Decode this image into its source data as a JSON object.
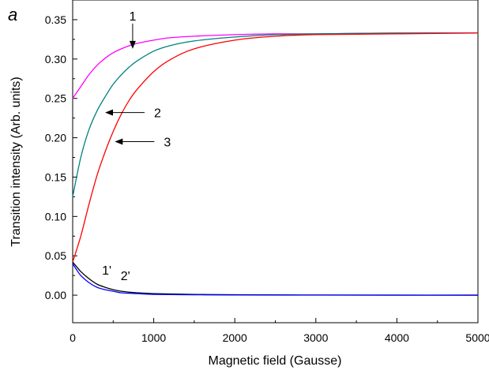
{
  "chart_data": {
    "type": "line",
    "panel_label": "a",
    "xlabel": "Magnetic field (Gausse)",
    "ylabel": "Transition intensity (Arb. units)",
    "xlim": [
      0,
      5000
    ],
    "ylim": [
      -0.035,
      0.375
    ],
    "xticks": [
      0,
      1000,
      2000,
      3000,
      4000,
      5000
    ],
    "xtick_labels": [
      "0",
      "1000",
      "2000",
      "3000",
      "4000",
      "5000"
    ],
    "yticks": [
      0.0,
      0.05,
      0.1,
      0.15,
      0.2,
      0.25,
      0.3,
      0.35
    ],
    "ytick_labels": [
      "0.00",
      "0.05",
      "0.10",
      "0.15",
      "0.20",
      "0.25",
      "0.30",
      "0.35"
    ],
    "grid": false,
    "series": [
      {
        "label": "1",
        "color": "#ff00ff",
        "x": [
          0,
          100,
          200,
          300,
          400,
          500,
          600,
          700,
          800,
          1000,
          1200,
          1500,
          2000,
          2500,
          3000,
          4000,
          5000
        ],
        "y": [
          0.25,
          0.265,
          0.28,
          0.292,
          0.301,
          0.308,
          0.313,
          0.317,
          0.32,
          0.324,
          0.327,
          0.329,
          0.331,
          0.332,
          0.332,
          0.333,
          0.333
        ]
      },
      {
        "label": "2",
        "color": "#008080",
        "x": [
          0,
          100,
          200,
          300,
          400,
          500,
          600,
          700,
          800,
          1000,
          1200,
          1500,
          2000,
          2500,
          3000,
          4000,
          5000
        ],
        "y": [
          0.125,
          0.175,
          0.21,
          0.234,
          0.252,
          0.268,
          0.28,
          0.29,
          0.298,
          0.31,
          0.317,
          0.323,
          0.328,
          0.331,
          0.332,
          0.333,
          0.333
        ]
      },
      {
        "label": "3",
        "color": "#ff0000",
        "x": [
          0,
          100,
          200,
          300,
          400,
          500,
          600,
          700,
          800,
          1000,
          1200,
          1500,
          2000,
          2500,
          3000,
          4000,
          5000
        ],
        "y": [
          0.042,
          0.075,
          0.115,
          0.152,
          0.182,
          0.208,
          0.23,
          0.248,
          0.262,
          0.284,
          0.299,
          0.313,
          0.324,
          0.329,
          0.331,
          0.332,
          0.333
        ]
      },
      {
        "label": "1'",
        "color": "#000000",
        "x": [
          0,
          50,
          100,
          200,
          300,
          400,
          500,
          600,
          800,
          1000,
          1500,
          2000,
          3000,
          4000,
          5000
        ],
        "y": [
          0.042,
          0.036,
          0.03,
          0.021,
          0.014,
          0.01,
          0.007,
          0.005,
          0.003,
          0.002,
          0.001,
          0.0005,
          0.0002,
          0.0001,
          0.0
        ]
      },
      {
        "label": "2'",
        "color": "#0000ff",
        "x": [
          0,
          50,
          100,
          200,
          300,
          400,
          500,
          600,
          800,
          1000,
          1500,
          2000,
          3000,
          4000,
          5000
        ],
        "y": [
          0.04,
          0.032,
          0.025,
          0.016,
          0.01,
          0.007,
          0.005,
          0.003,
          0.002,
          0.001,
          0.0005,
          0.0002,
          0.0001,
          0.0,
          0.0
        ]
      }
    ],
    "annotations": [
      {
        "text": "1",
        "arrow": "down",
        "x": 740,
        "y": 0.313
      },
      {
        "text": "2",
        "arrow": "left",
        "x": 400,
        "y": 0.232
      },
      {
        "text": "3",
        "arrow": "left",
        "x": 520,
        "y": 0.195
      },
      {
        "text": "1'",
        "x": 420,
        "y": 0.026
      },
      {
        "text": "2'",
        "x": 650,
        "y": 0.019
      }
    ]
  }
}
